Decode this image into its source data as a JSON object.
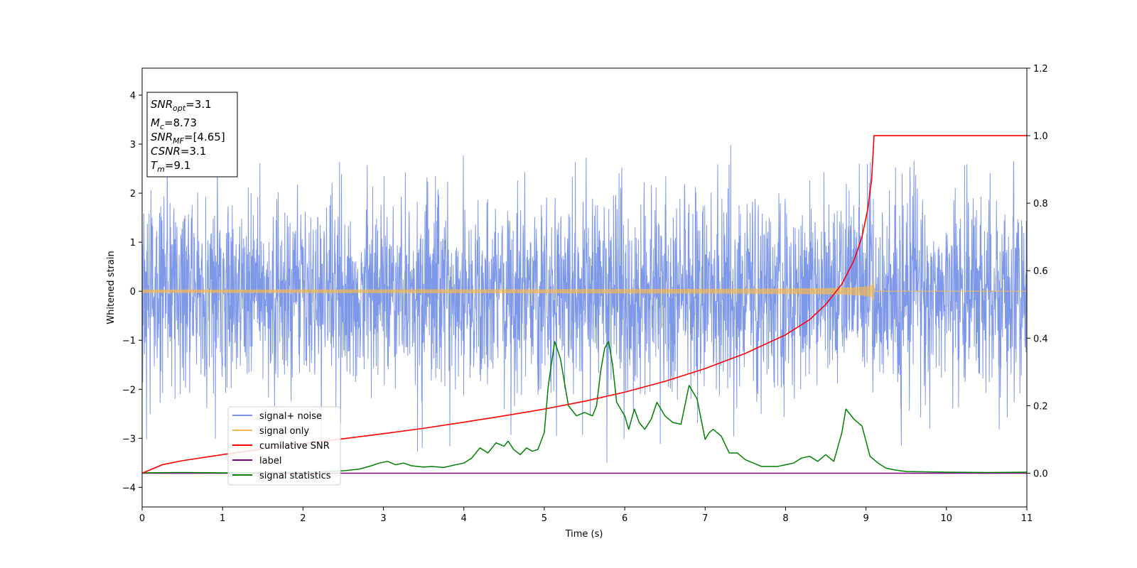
{
  "chart_data": {
    "type": "line",
    "xlabel": "Time (s)",
    "ylabel": "Whitened strain",
    "xlim": [
      0,
      11
    ],
    "ylim": [
      -4.4,
      4.55
    ],
    "y2lim": [
      -0.1,
      1.2
    ],
    "x_ticks": [
      "0",
      "1",
      "2",
      "3",
      "4",
      "5",
      "6",
      "7",
      "8",
      "9",
      "10",
      "11"
    ],
    "y_ticks": [
      "4",
      "3",
      "2",
      "1",
      "0",
      "−1",
      "−2",
      "−3",
      "−4"
    ],
    "y2_ticks": [
      "1.2",
      "1.0",
      "0.8",
      "0.6",
      "0.4",
      "0.2",
      "0.0"
    ],
    "textbox": [
      {
        "base": "SNR",
        "sub": "opt",
        "value": "=3.1"
      },
      {
        "base": "M",
        "sub": "c",
        "value": "=8.73"
      },
      {
        "base": "SNR",
        "sub": "MF",
        "value": "=[4.65]"
      },
      {
        "base": "CSNR",
        "sub": "",
        "value": "=3.1"
      },
      {
        "base": "T",
        "sub": "m",
        "value": "=9.1"
      }
    ],
    "legend_position": "lower-left",
    "series": [
      {
        "name": "signal+ noise",
        "color": "#7792e8",
        "axis": "left",
        "kind": "noise",
        "sigma": 1.0,
        "x_range": [
          0,
          11
        ]
      },
      {
        "name": "signal only",
        "color": "#f5b94f",
        "axis": "left",
        "kind": "chirp",
        "merger_time": 9.1,
        "peak_amplitude": 0.35
      },
      {
        "name": "cumilative SNR",
        "color": "#ff0000",
        "axis": "right",
        "x": [
          0,
          0.25,
          0.5,
          1,
          1.5,
          2,
          2.5,
          3,
          3.5,
          4,
          4.5,
          5,
          5.5,
          6,
          6.5,
          7,
          7.5,
          8,
          8.3,
          8.5,
          8.7,
          8.85,
          8.95,
          9.02,
          9.07,
          9.1,
          11
        ],
        "y": [
          0.0,
          0.025,
          0.037,
          0.055,
          0.072,
          0.088,
          0.102,
          0.117,
          0.133,
          0.151,
          0.17,
          0.19,
          0.213,
          0.24,
          0.272,
          0.31,
          0.355,
          0.41,
          0.455,
          0.5,
          0.56,
          0.63,
          0.7,
          0.78,
          0.87,
          1.0,
          1.0
        ]
      },
      {
        "name": "label",
        "color": "#800080",
        "axis": "right",
        "x": [
          0,
          11
        ],
        "y": [
          0.0,
          0.0
        ]
      },
      {
        "name": "signal statistics",
        "color": "#008000",
        "axis": "right",
        "x": [
          0,
          0.5,
          1,
          1.5,
          2,
          2.3,
          2.5,
          2.7,
          2.85,
          2.95,
          3.05,
          3.15,
          3.25,
          3.35,
          3.5,
          3.6,
          3.75,
          3.9,
          4.0,
          4.1,
          4.2,
          4.3,
          4.4,
          4.5,
          4.55,
          4.62,
          4.7,
          4.78,
          4.85,
          4.92,
          5.0,
          5.05,
          5.13,
          5.2,
          5.3,
          5.4,
          5.5,
          5.6,
          5.65,
          5.7,
          5.75,
          5.8,
          5.85,
          5.9,
          6.0,
          6.05,
          6.12,
          6.18,
          6.25,
          6.33,
          6.4,
          6.5,
          6.6,
          6.7,
          6.8,
          6.9,
          7.0,
          7.05,
          7.1,
          7.2,
          7.3,
          7.4,
          7.5,
          7.6,
          7.7,
          7.9,
          8.0,
          8.1,
          8.2,
          8.3,
          8.4,
          8.5,
          8.6,
          8.7,
          8.75,
          8.85,
          8.95,
          9.05,
          9.15,
          9.25,
          9.35,
          9.5,
          10,
          10.5,
          11
        ],
        "y": [
          0.001,
          0.002,
          0.001,
          0.002,
          0.003,
          0.005,
          0.007,
          0.012,
          0.022,
          0.03,
          0.035,
          0.025,
          0.03,
          0.022,
          0.018,
          0.02,
          0.017,
          0.025,
          0.03,
          0.045,
          0.075,
          0.06,
          0.09,
          0.08,
          0.095,
          0.07,
          0.055,
          0.075,
          0.065,
          0.07,
          0.12,
          0.26,
          0.39,
          0.34,
          0.2,
          0.17,
          0.18,
          0.17,
          0.2,
          0.3,
          0.37,
          0.39,
          0.32,
          0.21,
          0.17,
          0.13,
          0.19,
          0.15,
          0.13,
          0.16,
          0.21,
          0.17,
          0.15,
          0.145,
          0.26,
          0.22,
          0.1,
          0.12,
          0.13,
          0.11,
          0.06,
          0.06,
          0.04,
          0.03,
          0.02,
          0.02,
          0.025,
          0.03,
          0.045,
          0.05,
          0.035,
          0.055,
          0.035,
          0.12,
          0.19,
          0.16,
          0.14,
          0.05,
          0.03,
          0.015,
          0.01,
          0.005,
          0.003,
          0.002,
          0.003
        ]
      }
    ]
  }
}
